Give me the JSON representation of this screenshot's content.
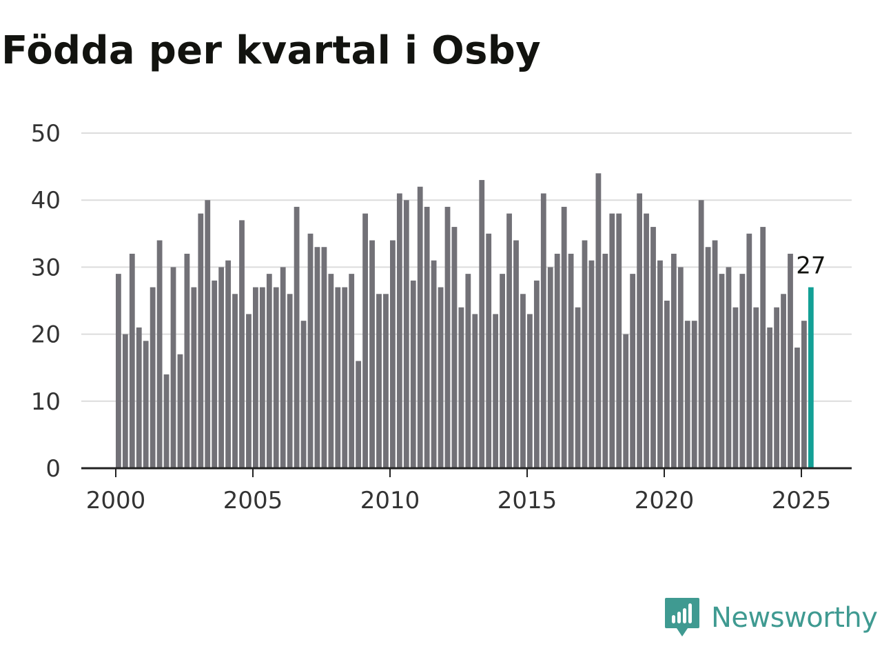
{
  "title": "Födda per kvartal i Osby",
  "brand": {
    "name": "Newsworthy",
    "icon": "newsworthy-logo-icon",
    "color": "#3f9a91"
  },
  "chart_data": {
    "type": "bar",
    "title": "Födda per kvartal i Osby",
    "xlabel": "",
    "ylabel": "",
    "x_ticks": [
      "2000",
      "2005",
      "2010",
      "2015",
      "2020",
      "2025"
    ],
    "y_ticks": [
      0,
      10,
      20,
      30,
      40,
      50
    ],
    "ylim": [
      0,
      50
    ],
    "xlim": [
      "2000 Q1",
      "2025 Q2"
    ],
    "grid": true,
    "legend": "none",
    "bar_color": "#727177",
    "highlight_color": "#13a096",
    "highlight_label": "27",
    "categories": [
      "2000 Q1",
      "2000 Q2",
      "2000 Q3",
      "2000 Q4",
      "2001 Q1",
      "2001 Q2",
      "2001 Q3",
      "2001 Q4",
      "2002 Q1",
      "2002 Q2",
      "2002 Q3",
      "2002 Q4",
      "2003 Q1",
      "2003 Q2",
      "2003 Q3",
      "2003 Q4",
      "2004 Q1",
      "2004 Q2",
      "2004 Q3",
      "2004 Q4",
      "2005 Q1",
      "2005 Q2",
      "2005 Q3",
      "2005 Q4",
      "2006 Q1",
      "2006 Q2",
      "2006 Q3",
      "2006 Q4",
      "2007 Q1",
      "2007 Q2",
      "2007 Q3",
      "2007 Q4",
      "2008 Q1",
      "2008 Q2",
      "2008 Q3",
      "2008 Q4",
      "2009 Q1",
      "2009 Q2",
      "2009 Q3",
      "2009 Q4",
      "2010 Q1",
      "2010 Q2",
      "2010 Q3",
      "2010 Q4",
      "2011 Q1",
      "2011 Q2",
      "2011 Q3",
      "2011 Q4",
      "2012 Q1",
      "2012 Q2",
      "2012 Q3",
      "2012 Q4",
      "2013 Q1",
      "2013 Q2",
      "2013 Q3",
      "2013 Q4",
      "2014 Q1",
      "2014 Q2",
      "2014 Q3",
      "2014 Q4",
      "2015 Q1",
      "2015 Q2",
      "2015 Q3",
      "2015 Q4",
      "2016 Q1",
      "2016 Q2",
      "2016 Q3",
      "2016 Q4",
      "2017 Q1",
      "2017 Q2",
      "2017 Q3",
      "2017 Q4",
      "2018 Q1",
      "2018 Q2",
      "2018 Q3",
      "2018 Q4",
      "2019 Q1",
      "2019 Q2",
      "2019 Q3",
      "2019 Q4",
      "2020 Q1",
      "2020 Q2",
      "2020 Q3",
      "2020 Q4",
      "2021 Q1",
      "2021 Q2",
      "2021 Q3",
      "2021 Q4",
      "2022 Q1",
      "2022 Q2",
      "2022 Q3",
      "2022 Q4",
      "2023 Q1",
      "2023 Q2",
      "2023 Q3",
      "2023 Q4",
      "2024 Q1",
      "2024 Q2",
      "2024 Q3",
      "2024 Q4",
      "2025 Q1",
      "2025 Q2"
    ],
    "values": [
      29,
      20,
      32,
      21,
      19,
      27,
      34,
      14,
      30,
      17,
      32,
      27,
      38,
      40,
      28,
      30,
      31,
      26,
      37,
      23,
      27,
      27,
      29,
      27,
      30,
      26,
      39,
      22,
      35,
      33,
      33,
      29,
      27,
      27,
      29,
      16,
      38,
      34,
      26,
      26,
      34,
      41,
      40,
      28,
      42,
      39,
      31,
      27,
      39,
      36,
      24,
      29,
      23,
      43,
      35,
      23,
      29,
      38,
      34,
      26,
      23,
      28,
      41,
      30,
      32,
      39,
      32,
      24,
      34,
      31,
      44,
      32,
      38,
      38,
      20,
      29,
      41,
      38,
      36,
      31,
      25,
      32,
      30,
      22,
      22,
      40,
      33,
      34,
      29,
      30,
      24,
      29,
      35,
      24,
      36,
      21,
      24,
      26,
      32,
      18,
      22,
      27
    ]
  }
}
